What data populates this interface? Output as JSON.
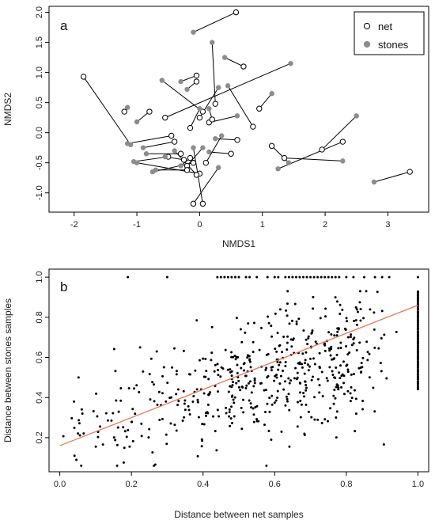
{
  "chart_data": [
    {
      "type": "scatter",
      "panel_label": "a",
      "xlabel": "NMDS1",
      "ylabel": "NMDS2",
      "xlim": [
        -2.4,
        3.65
      ],
      "ylim": [
        -1.32,
        2.1
      ],
      "xticks": [
        -2,
        -1,
        0,
        1,
        2,
        3
      ],
      "yticks": [
        -1.0,
        -0.5,
        0.0,
        0.5,
        1.0,
        1.5,
        2.0
      ],
      "ytick_labels": [
        "-1.0",
        "-0.5",
        "0.0",
        "0.5",
        "1.0",
        "1.5",
        "2.0"
      ],
      "grid": false,
      "legend_position": "top-right",
      "series": [
        {
          "name": "net",
          "marker": "open-circle",
          "color": "#000000"
        },
        {
          "name": "stones",
          "marker": "filled-circle",
          "color": "#8c8c8c"
        }
      ],
      "pairs": [
        {
          "net": [
            0.58,
            2.0
          ],
          "stones": [
            -0.1,
            1.67
          ]
        },
        {
          "net": [
            -1.85,
            0.93
          ],
          "stones": [
            -1.1,
            -0.2
          ]
        },
        {
          "net": [
            0.7,
            1.1
          ],
          "stones": [
            0.4,
            1.25
          ]
        },
        {
          "net": [
            0.25,
            0.48
          ],
          "stones": [
            0.2,
            1.5
          ]
        },
        {
          "net": [
            -0.05,
            0.95
          ],
          "stones": [
            -0.3,
            0.85
          ]
        },
        {
          "net": [
            0.05,
            0.35
          ],
          "stones": [
            -0.6,
            0.87
          ]
        },
        {
          "net": [
            0.85,
            0.1
          ],
          "stones": [
            0.45,
            0.78
          ]
        },
        {
          "net": [
            0.95,
            0.4
          ],
          "stones": [
            1.15,
            0.65
          ]
        },
        {
          "net": [
            -0.55,
            0.25
          ],
          "stones": [
            1.45,
            1.15
          ]
        },
        {
          "net": [
            -1.2,
            0.35
          ],
          "stones": [
            -1.15,
            0.42
          ]
        },
        {
          "net": [
            -0.8,
            0.35
          ],
          "stones": [
            -1.0,
            0.18
          ]
        },
        {
          "net": [
            -0.15,
            0.08
          ],
          "stones": [
            0.0,
            0.4
          ]
        },
        {
          "net": [
            0.0,
            0.25
          ],
          "stones": [
            0.3,
            0.75
          ]
        },
        {
          "net": [
            -0.05,
            0.85
          ],
          "stones": [
            -0.2,
            0.72
          ]
        },
        {
          "net": [
            0.15,
            0.17
          ],
          "stones": [
            0.6,
            0.28
          ]
        },
        {
          "net": [
            0.2,
            0.22
          ],
          "stones": [
            0.15,
            0.4
          ]
        },
        {
          "net": [
            -0.45,
            -0.05
          ],
          "stones": [
            -1.15,
            -0.18
          ]
        },
        {
          "net": [
            -0.4,
            -0.15
          ],
          "stones": [
            -0.9,
            -0.25
          ]
        },
        {
          "net": [
            -0.5,
            -0.4
          ],
          "stones": [
            -1.05,
            -0.48
          ]
        },
        {
          "net": [
            -0.3,
            -0.35
          ],
          "stones": [
            -0.85,
            -0.35
          ]
        },
        {
          "net": [
            0.1,
            -0.5
          ],
          "stones": [
            0.35,
            -0.05
          ]
        },
        {
          "net": [
            -0.2,
            -0.55
          ],
          "stones": [
            0.05,
            -0.25
          ]
        },
        {
          "net": [
            -0.1,
            -0.5
          ],
          "stones": [
            -0.75,
            -0.65
          ]
        },
        {
          "net": [
            0.0,
            -0.68
          ],
          "stones": [
            -1.0,
            -0.5
          ]
        },
        {
          "net": [
            -0.05,
            -0.7
          ],
          "stones": [
            -0.4,
            -0.3
          ]
        },
        {
          "net": [
            -0.15,
            -0.42
          ],
          "stones": [
            -0.3,
            -0.55
          ]
        },
        {
          "net": [
            0.05,
            -1.18
          ],
          "stones": [
            -0.1,
            -0.25
          ]
        },
        {
          "net": [
            -0.1,
            -1.18
          ],
          "stones": [
            0.3,
            -0.58
          ]
        },
        {
          "net": [
            1.15,
            -0.22
          ],
          "stones": [
            1.42,
            -0.5
          ]
        },
        {
          "net": [
            1.35,
            -0.42
          ],
          "stones": [
            2.28,
            -0.47
          ]
        },
        {
          "net": [
            2.28,
            -0.15
          ],
          "stones": [
            1.25,
            -0.6
          ]
        },
        {
          "net": [
            1.95,
            -0.28
          ],
          "stones": [
            2.5,
            0.28
          ]
        },
        {
          "net": [
            3.35,
            -0.65
          ],
          "stones": [
            2.78,
            -0.82
          ]
        },
        {
          "net": [
            0.5,
            -0.35
          ],
          "stones": [
            0.15,
            -0.32
          ]
        },
        {
          "net": [
            0.6,
            -0.12
          ],
          "stones": [
            0.25,
            -0.1
          ]
        },
        {
          "net": [
            -0.25,
            -0.45
          ],
          "stones": [
            -0.55,
            -0.4
          ]
        },
        {
          "net": [
            -0.2,
            -0.62
          ],
          "stones": [
            -0.7,
            -0.62
          ]
        }
      ]
    },
    {
      "type": "scatter",
      "panel_label": "b",
      "xlabel": "Distance between net samples",
      "ylabel": "Distance between stones samples",
      "xlim": [
        -0.03,
        1.03
      ],
      "ylim": [
        0.03,
        1.04
      ],
      "xticks": [
        0.0,
        0.2,
        0.4,
        0.6,
        0.8,
        1.0
      ],
      "xtick_labels": [
        "0.0",
        "0.2",
        "0.4",
        "0.6",
        "0.8",
        "1.0"
      ],
      "yticks": [
        0.2,
        0.4,
        0.6,
        0.8,
        1.0
      ],
      "ytick_labels": [
        "0.2",
        "0.4",
        "0.6",
        "0.8",
        "1.0"
      ],
      "grid": false,
      "trend_line": {
        "color": "#e8775a",
        "intercept": 0.16,
        "slope": 0.7
      },
      "point_color": "#000000",
      "clusters": [
        {
          "cx": 0.3,
          "cy": 0.35,
          "sx": 0.12,
          "sy": 0.12,
          "n": 90
        },
        {
          "cx": 0.5,
          "cy": 0.48,
          "sx": 0.1,
          "sy": 0.14,
          "n": 150
        },
        {
          "cx": 0.68,
          "cy": 0.55,
          "sx": 0.1,
          "sy": 0.15,
          "n": 190
        },
        {
          "cx": 0.82,
          "cy": 0.62,
          "sx": 0.06,
          "sy": 0.16,
          "n": 90
        },
        {
          "cx": 0.1,
          "cy": 0.2,
          "sx": 0.07,
          "sy": 0.08,
          "n": 30
        }
      ],
      "column_at_x1": {
        "x": 1.0,
        "y_min": 0.44,
        "y_max": 0.93,
        "n": 70
      },
      "row_at_y1": {
        "y": 1.0,
        "x_values": [
          0.19,
          0.3,
          0.44,
          0.45,
          0.46,
          0.47,
          0.48,
          0.49,
          0.5,
          0.52,
          0.53,
          0.55,
          0.58,
          0.6,
          0.61,
          0.63,
          0.64,
          0.65,
          0.66,
          0.67,
          0.68,
          0.69,
          0.7,
          0.71,
          0.72,
          0.73,
          0.74,
          0.75,
          0.76,
          0.77,
          0.78,
          0.8,
          0.82,
          0.85,
          0.88,
          0.9,
          0.92,
          1.0
        ]
      }
    }
  ]
}
